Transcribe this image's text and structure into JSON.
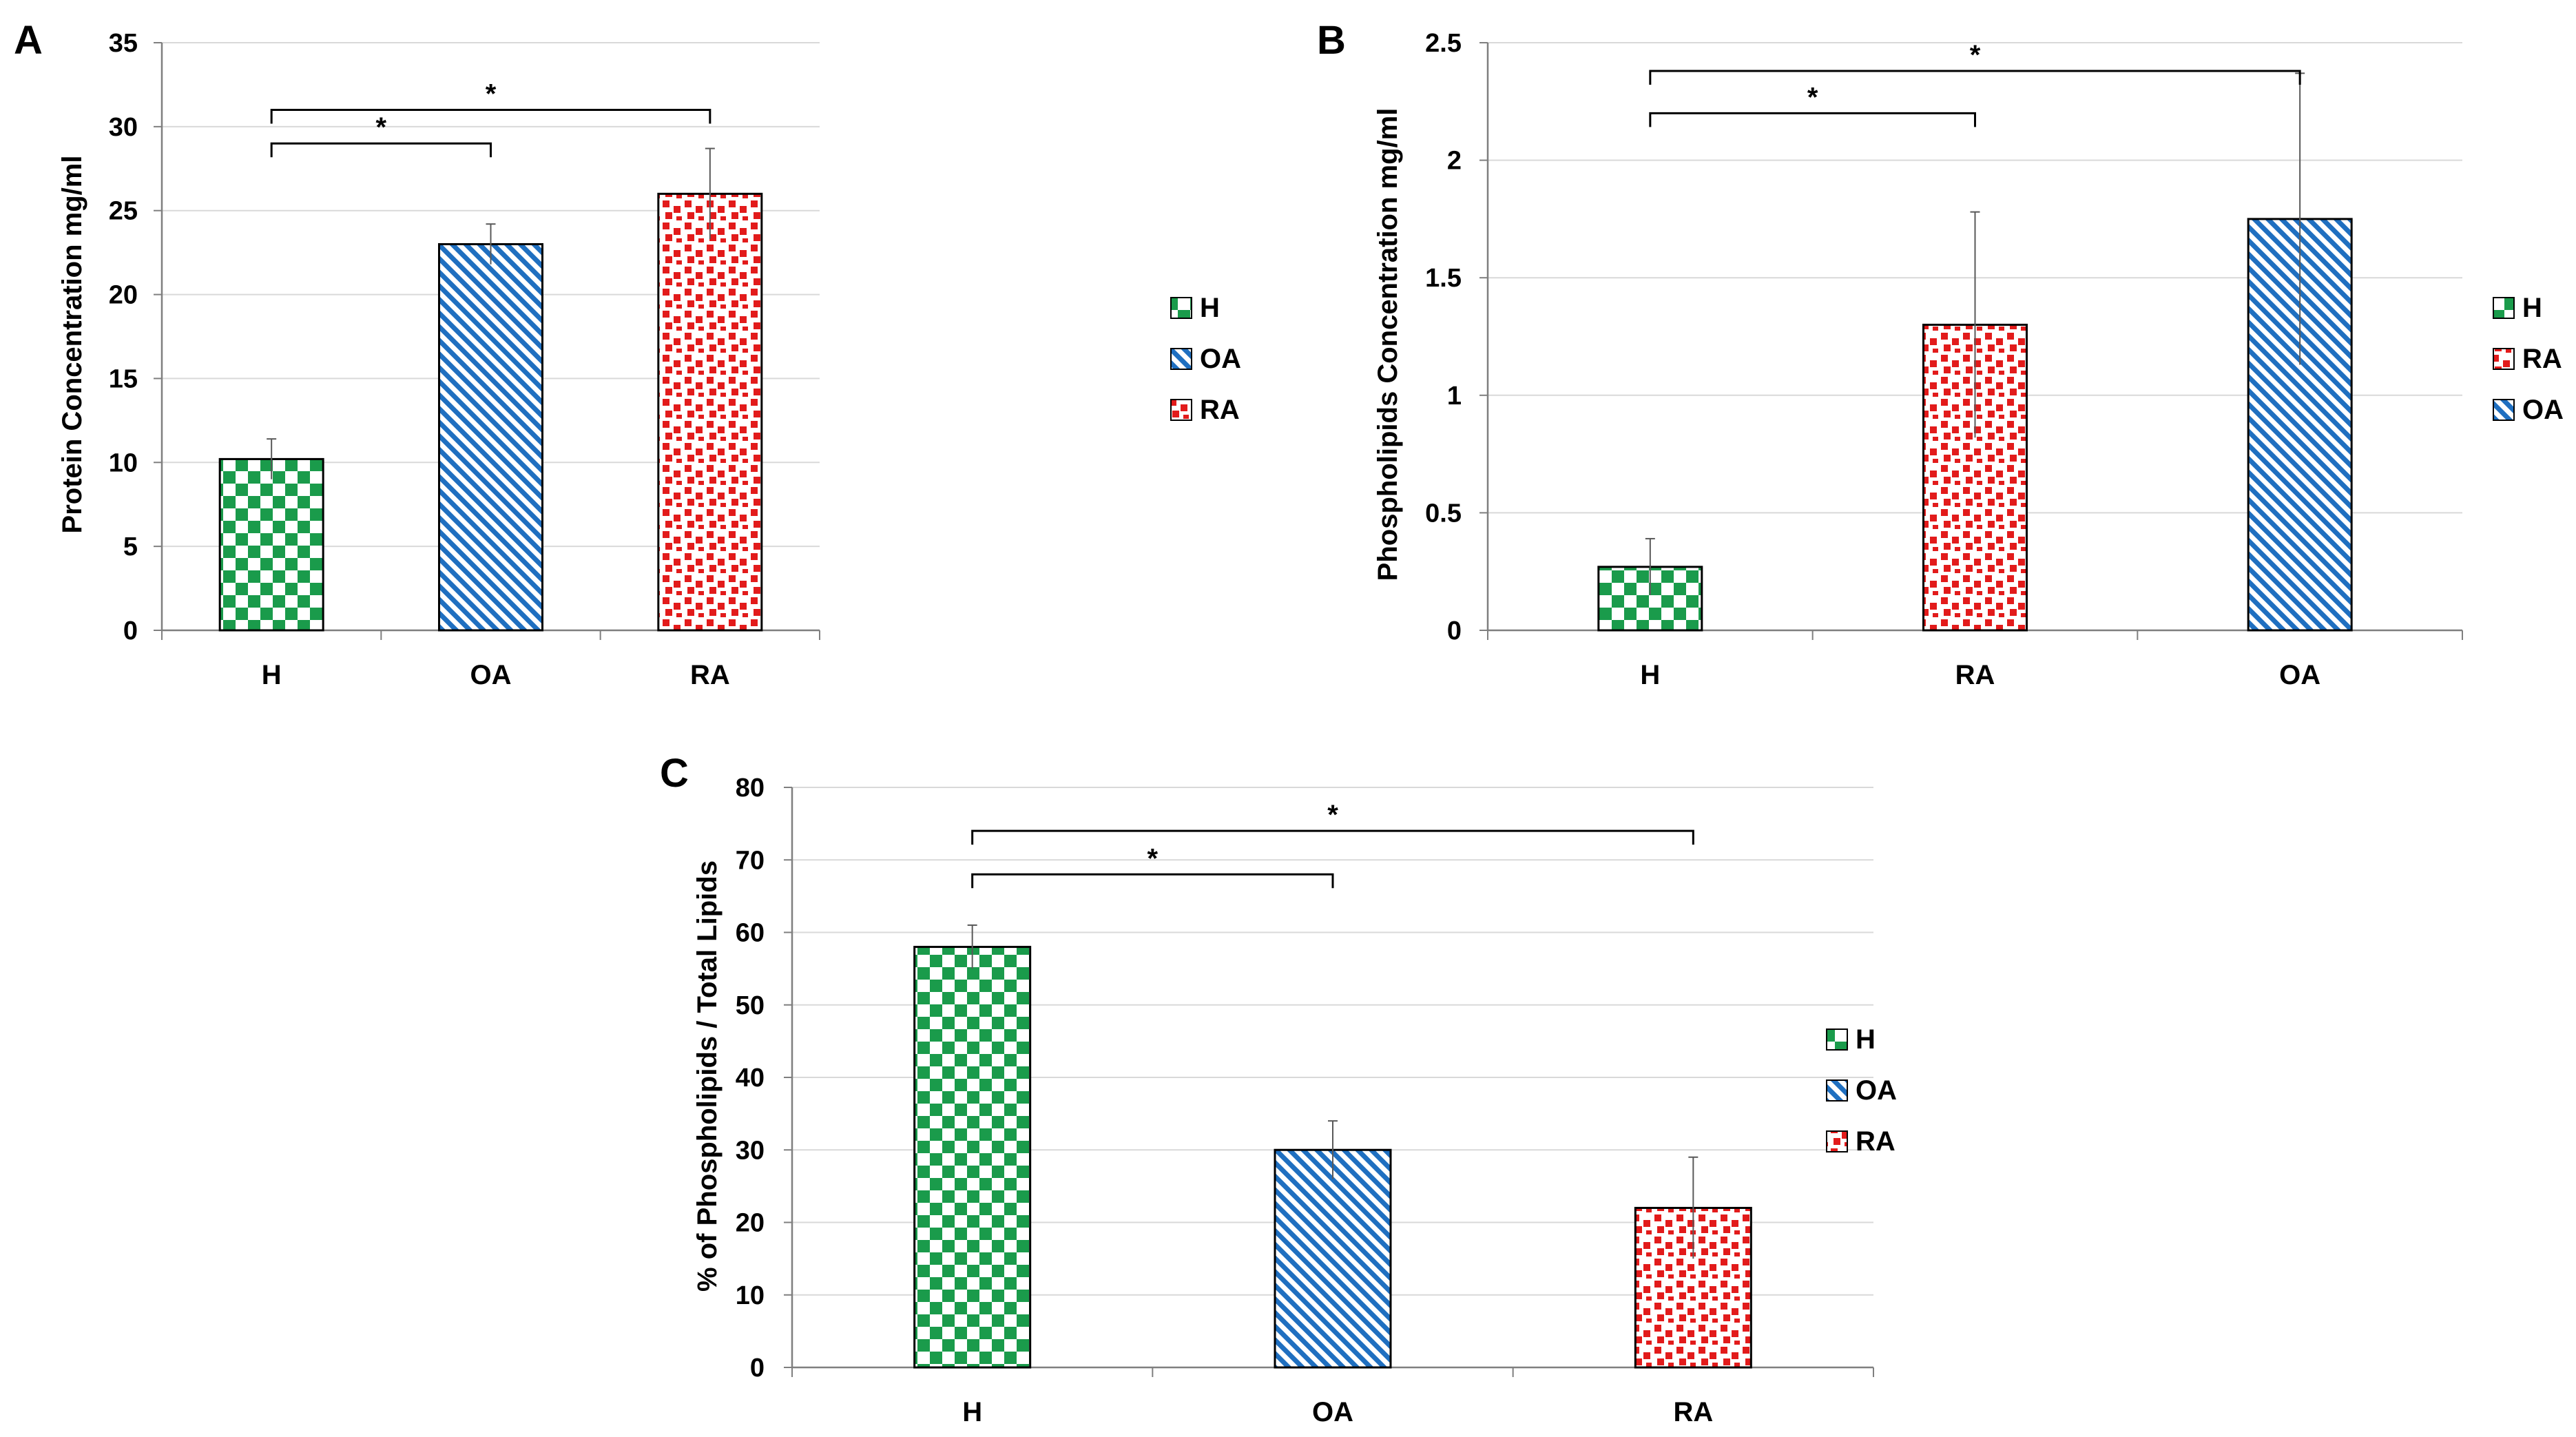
{
  "colors": {
    "H": "#1a9b4b",
    "OA": "#1f6fc0",
    "RA": "#e21b1b",
    "grid": "#d9d9d9",
    "axis": "#7f7f7f"
  },
  "chart_data": [
    {
      "panel": "A",
      "type": "bar",
      "ylabel": "Protein Concentration mg/ml",
      "ylim": [
        0,
        35
      ],
      "ticks": [
        "0",
        "5",
        "10",
        "15",
        "20",
        "25",
        "30",
        "35"
      ],
      "categories": [
        "H",
        "OA",
        "RA"
      ],
      "values": [
        10.2,
        23,
        26
      ],
      "errors": [
        1.2,
        1.2,
        2.7
      ],
      "legend": [
        "H",
        "OA",
        "RA"
      ],
      "significance": [
        {
          "from": 0,
          "to": 1,
          "label": "*",
          "y": 29
        },
        {
          "from": 0,
          "to": 2,
          "label": "*",
          "y": 31
        }
      ]
    },
    {
      "panel": "B",
      "type": "bar",
      "ylabel": "Phospholipids Concentration mg/ml",
      "ylim": [
        0,
        2.5
      ],
      "ticks": [
        "0",
        "0.5",
        "1",
        "1.5",
        "2",
        "2.5"
      ],
      "categories": [
        "H",
        "RA",
        "OA"
      ],
      "values": [
        0.27,
        1.3,
        1.75
      ],
      "errors": [
        0.12,
        0.48,
        0.62
      ],
      "legend": [
        "H",
        "RA",
        "OA"
      ],
      "significance": [
        {
          "from": 0,
          "to": 1,
          "label": "*",
          "y": 2.2
        },
        {
          "from": 0,
          "to": 2,
          "label": "*",
          "y": 2.38
        }
      ]
    },
    {
      "panel": "C",
      "type": "bar",
      "ylabel": "% of Phospholipids / Total Lipids",
      "ylim": [
        0,
        80
      ],
      "ticks": [
        "0",
        "10",
        "20",
        "30",
        "40",
        "50",
        "60",
        "70",
        "80"
      ],
      "categories": [
        "H",
        "OA",
        "RA"
      ],
      "values": [
        58,
        30,
        22
      ],
      "errors": [
        3,
        4,
        7
      ],
      "legend": [
        "H",
        "OA",
        "RA"
      ],
      "significance": [
        {
          "from": 0,
          "to": 1,
          "label": "*",
          "y": 68
        },
        {
          "from": 0,
          "to": 2,
          "label": "*",
          "y": 74
        }
      ]
    }
  ]
}
